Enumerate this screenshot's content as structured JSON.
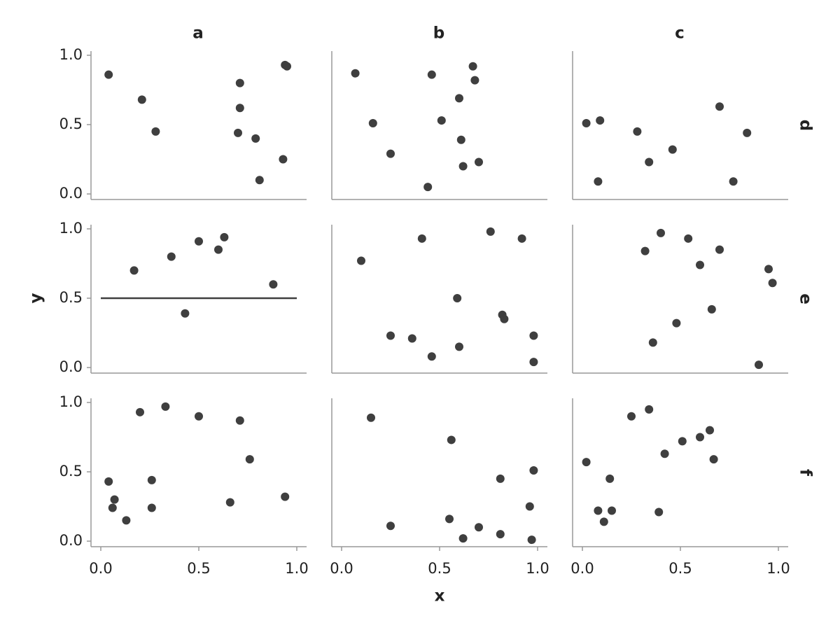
{
  "facets": {
    "columns": [
      "a",
      "b",
      "c"
    ],
    "rows": [
      "d",
      "e",
      "f"
    ],
    "x_label": "x",
    "y_label": "y",
    "xlim": [
      -0.05,
      1.05
    ],
    "ylim": [
      -0.04,
      1.03
    ],
    "xticks": [
      {
        "value": 0,
        "label": "0.0"
      },
      {
        "value": 0.5,
        "label": "0.5"
      },
      {
        "value": 1,
        "label": "1.0"
      }
    ],
    "yticks": [
      {
        "value": 0,
        "label": "0.0"
      },
      {
        "value": 0.5,
        "label": "0.5"
      },
      {
        "value": 1,
        "label": "1.0"
      }
    ]
  },
  "chart_data": [
    {
      "type": "scatter",
      "color": "#3f3f3f",
      "x": [
        0.04,
        0.21,
        0.28,
        0.71,
        0.71,
        0.7,
        0.79,
        0.81,
        0.93,
        0.94,
        0.95
      ],
      "values": [
        0.86,
        0.68,
        0.45,
        0.8,
        0.62,
        0.44,
        0.4,
        0.1,
        0.25,
        0.93,
        0.92
      ]
    },
    {
      "type": "scatter",
      "color": "#3f3f3f",
      "x": [
        0.07,
        0.16,
        0.25,
        0.44,
        0.46,
        0.51,
        0.6,
        0.61,
        0.62,
        0.67,
        0.68,
        0.7
      ],
      "values": [
        0.87,
        0.51,
        0.29,
        0.05,
        0.86,
        0.53,
        0.69,
        0.39,
        0.2,
        0.92,
        0.82,
        0.23
      ]
    },
    {
      "type": "scatter",
      "color": "#3f3f3f",
      "x": [
        0.02,
        0.08,
        0.09,
        0.28,
        0.34,
        0.46,
        0.7,
        0.77,
        0.84
      ],
      "values": [
        0.51,
        0.09,
        0.53,
        0.45,
        0.23,
        0.32,
        0.63,
        0.09,
        0.44
      ]
    },
    {
      "type": "scatter",
      "color": "#3f3f3f",
      "hline": 0.5,
      "x": [
        0.17,
        0.36,
        0.43,
        0.5,
        0.6,
        0.63,
        0.88
      ],
      "values": [
        0.7,
        0.8,
        0.39,
        0.91,
        0.85,
        0.94,
        0.6
      ]
    },
    {
      "type": "scatter",
      "color": "#3f3f3f",
      "x": [
        0.1,
        0.25,
        0.36,
        0.41,
        0.46,
        0.59,
        0.6,
        0.76,
        0.82,
        0.83,
        0.92,
        0.98,
        0.98
      ],
      "values": [
        0.77,
        0.23,
        0.21,
        0.93,
        0.08,
        0.5,
        0.15,
        0.98,
        0.38,
        0.35,
        0.93,
        0.23,
        0.04
      ]
    },
    {
      "type": "scatter",
      "color": "#3f3f3f",
      "x": [
        0.32,
        0.36,
        0.4,
        0.48,
        0.54,
        0.6,
        0.66,
        0.7,
        0.9,
        0.95,
        0.97
      ],
      "values": [
        0.84,
        0.18,
        0.97,
        0.32,
        0.93,
        0.74,
        0.42,
        0.85,
        0.02,
        0.71,
        0.61
      ]
    },
    {
      "type": "scatter",
      "color": "#3f3f3f",
      "x": [
        0.04,
        0.07,
        0.06,
        0.13,
        0.2,
        0.26,
        0.26,
        0.33,
        0.5,
        0.66,
        0.71,
        0.76,
        0.94
      ],
      "values": [
        0.43,
        0.3,
        0.24,
        0.15,
        0.93,
        0.44,
        0.24,
        0.97,
        0.9,
        0.28,
        0.87,
        0.59,
        0.32
      ]
    },
    {
      "type": "scatter",
      "color": "#3f3f3f",
      "x": [
        0.15,
        0.25,
        0.55,
        0.56,
        0.62,
        0.7,
        0.81,
        0.81,
        0.96,
        0.97,
        0.98
      ],
      "values": [
        0.89,
        0.11,
        0.16,
        0.73,
        0.02,
        0.1,
        0.45,
        0.05,
        0.25,
        0.01,
        0.51
      ]
    },
    {
      "type": "scatter",
      "color": "#3f3f3f",
      "x": [
        0.02,
        0.08,
        0.11,
        0.14,
        0.15,
        0.25,
        0.34,
        0.39,
        0.42,
        0.51,
        0.6,
        0.65,
        0.67
      ],
      "values": [
        0.57,
        0.22,
        0.14,
        0.45,
        0.22,
        0.9,
        0.95,
        0.21,
        0.63,
        0.72,
        0.75,
        0.8,
        0.59
      ]
    }
  ]
}
